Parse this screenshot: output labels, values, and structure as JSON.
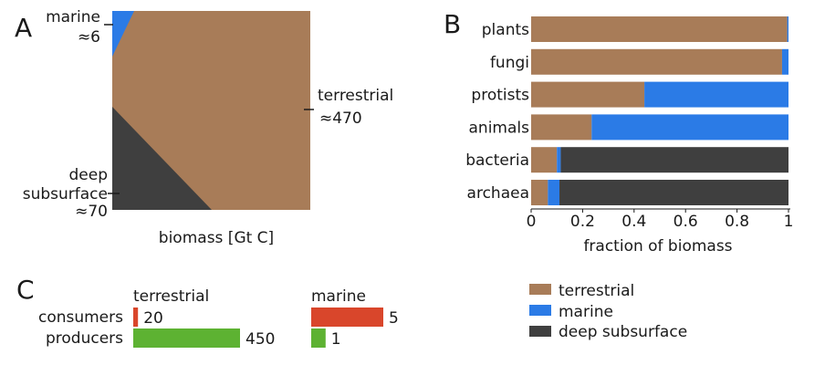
{
  "panels": {
    "A": "A",
    "B": "B",
    "C": "C"
  },
  "colors": {
    "terrestrial": "#a87c58",
    "marine": "#2b7be6",
    "deep": "#3f3f3f",
    "consumers": "#d9462b",
    "producers": "#5db232"
  },
  "legend": {
    "terrestrial": "terrestrial",
    "marine": "marine",
    "deep": "deep subsurface"
  },
  "chart_data": [
    {
      "type": "area",
      "panel": "A",
      "xlabel": "biomass [Gt C]",
      "segments": [
        {
          "key": "marine",
          "name_line1": "marine",
          "name_line2": "≈6",
          "value": 6
        },
        {
          "key": "terrestrial",
          "name_line1": "terrestrial",
          "name_line2": "≈470",
          "value": 470
        },
        {
          "key": "deep",
          "name_line1": "deep",
          "name_line1b": "subsurface",
          "name_line2": "≈70",
          "value": 70
        }
      ]
    },
    {
      "type": "bar",
      "panel": "B",
      "orientation": "horizontal",
      "stacked": true,
      "xlabel": "fraction of biomass",
      "xlim": [
        0,
        1
      ],
      "xticks": [
        "0",
        "0.2",
        "0.4",
        "0.6",
        "0.8",
        "1"
      ],
      "categories": [
        "plants",
        "fungi",
        "protists",
        "animals",
        "bacteria",
        "archaea"
      ],
      "series": [
        {
          "name": "terrestrial",
          "key": "terrestrial",
          "values": [
            0.995,
            0.975,
            0.44,
            0.235,
            0.1,
            0.065
          ]
        },
        {
          "name": "marine",
          "key": "marine",
          "values": [
            0.005,
            0.025,
            0.56,
            0.765,
            0.015,
            0.045
          ]
        },
        {
          "name": "deep subsurface",
          "key": "deep",
          "values": [
            0.0,
            0.0,
            0.0,
            0.0,
            0.885,
            0.89
          ]
        }
      ],
      "legend_position": "bottom"
    },
    {
      "type": "bar",
      "panel": "C",
      "orientation": "horizontal",
      "categories": [
        "consumers",
        "producers"
      ],
      "groups": [
        {
          "name": "terrestrial",
          "values": [
            20,
            450
          ],
          "labels": [
            "20",
            "450"
          ]
        },
        {
          "name": "marine",
          "values": [
            5,
            1
          ],
          "labels": [
            "5",
            "1"
          ]
        }
      ]
    }
  ]
}
